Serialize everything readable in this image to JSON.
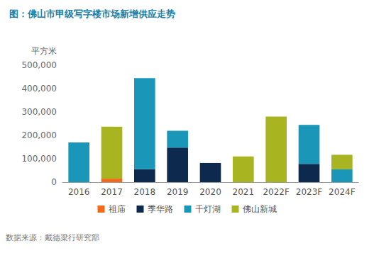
{
  "chart_data": {
    "type": "bar",
    "title": "图：佛山市甲级写字楼市场新增供应走势",
    "y_label": "平方米",
    "source": "数据来源：戴德梁行研究部",
    "categories": [
      "2016",
      "2017",
      "2018",
      "2019",
      "2020",
      "2021",
      "2022F",
      "2023F",
      "2024F"
    ],
    "series": [
      {
        "name": "祖庙",
        "color": "#f26b1d",
        "values": [
          null,
          15000,
          null,
          null,
          null,
          null,
          null,
          null,
          null
        ]
      },
      {
        "name": "季华路",
        "color": "#0d2a4e",
        "values": [
          null,
          null,
          55000,
          148000,
          82000,
          null,
          null,
          78000,
          null
        ]
      },
      {
        "name": "千灯湖",
        "color": "#1a97b8",
        "values": [
          170000,
          null,
          390000,
          72000,
          null,
          null,
          null,
          167000,
          55000
        ]
      },
      {
        "name": "佛山新城",
        "color": "#a8b520",
        "values": [
          null,
          222000,
          null,
          null,
          null,
          110000,
          280000,
          null,
          62000
        ]
      }
    ],
    "stacked": true,
    "ylim": [
      0,
      500000
    ],
    "yticks": [
      0,
      {
        "value": 100000,
        "label": "100,000"
      },
      {
        "value": 200000,
        "label": "200,000"
      },
      {
        "value": 300000,
        "label": "300,000"
      },
      {
        "value": 400000,
        "label": "400,000"
      },
      {
        "value": 500000,
        "label": "500,000"
      }
    ],
    "grid": false,
    "legend": "bottom"
  }
}
